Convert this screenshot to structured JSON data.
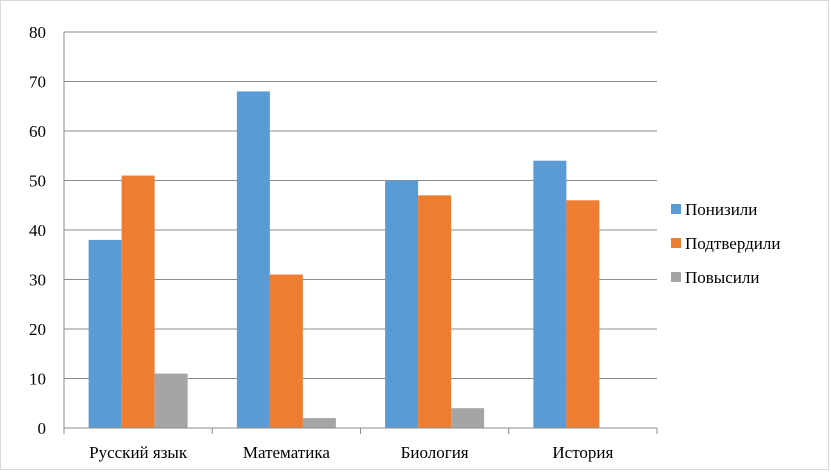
{
  "chart_data": {
    "type": "bar",
    "categories": [
      "Русский язык",
      "Математика",
      "Биология",
      "История"
    ],
    "series": [
      {
        "name": "Понизили",
        "color": "#5b9bd5",
        "values": [
          38,
          68,
          50,
          54
        ]
      },
      {
        "name": "Подтвердили",
        "color": "#ed7d31",
        "values": [
          51,
          31,
          47,
          46
        ]
      },
      {
        "name": "Повысили",
        "color": "#a5a5a5",
        "values": [
          11,
          2,
          4,
          0
        ]
      }
    ],
    "ylim": [
      0,
      80
    ],
    "yticks": [
      0,
      10,
      20,
      30,
      40,
      50,
      60,
      70,
      80
    ],
    "grid": true,
    "legend_position": "right"
  }
}
